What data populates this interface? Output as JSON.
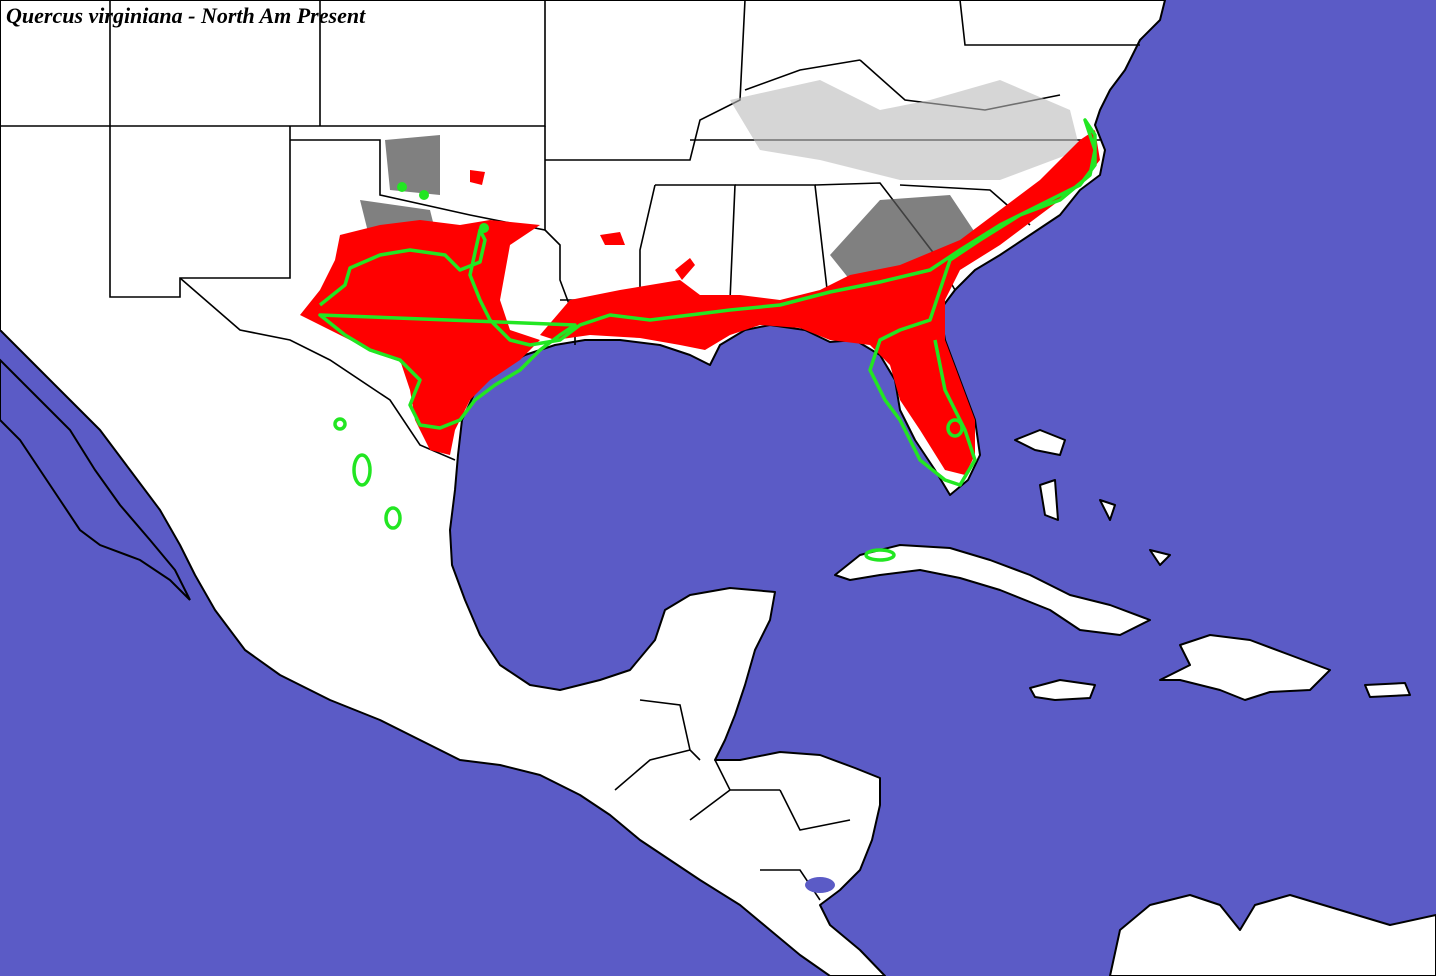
{
  "title": "Quercus virginiana - North Am Present"
}
